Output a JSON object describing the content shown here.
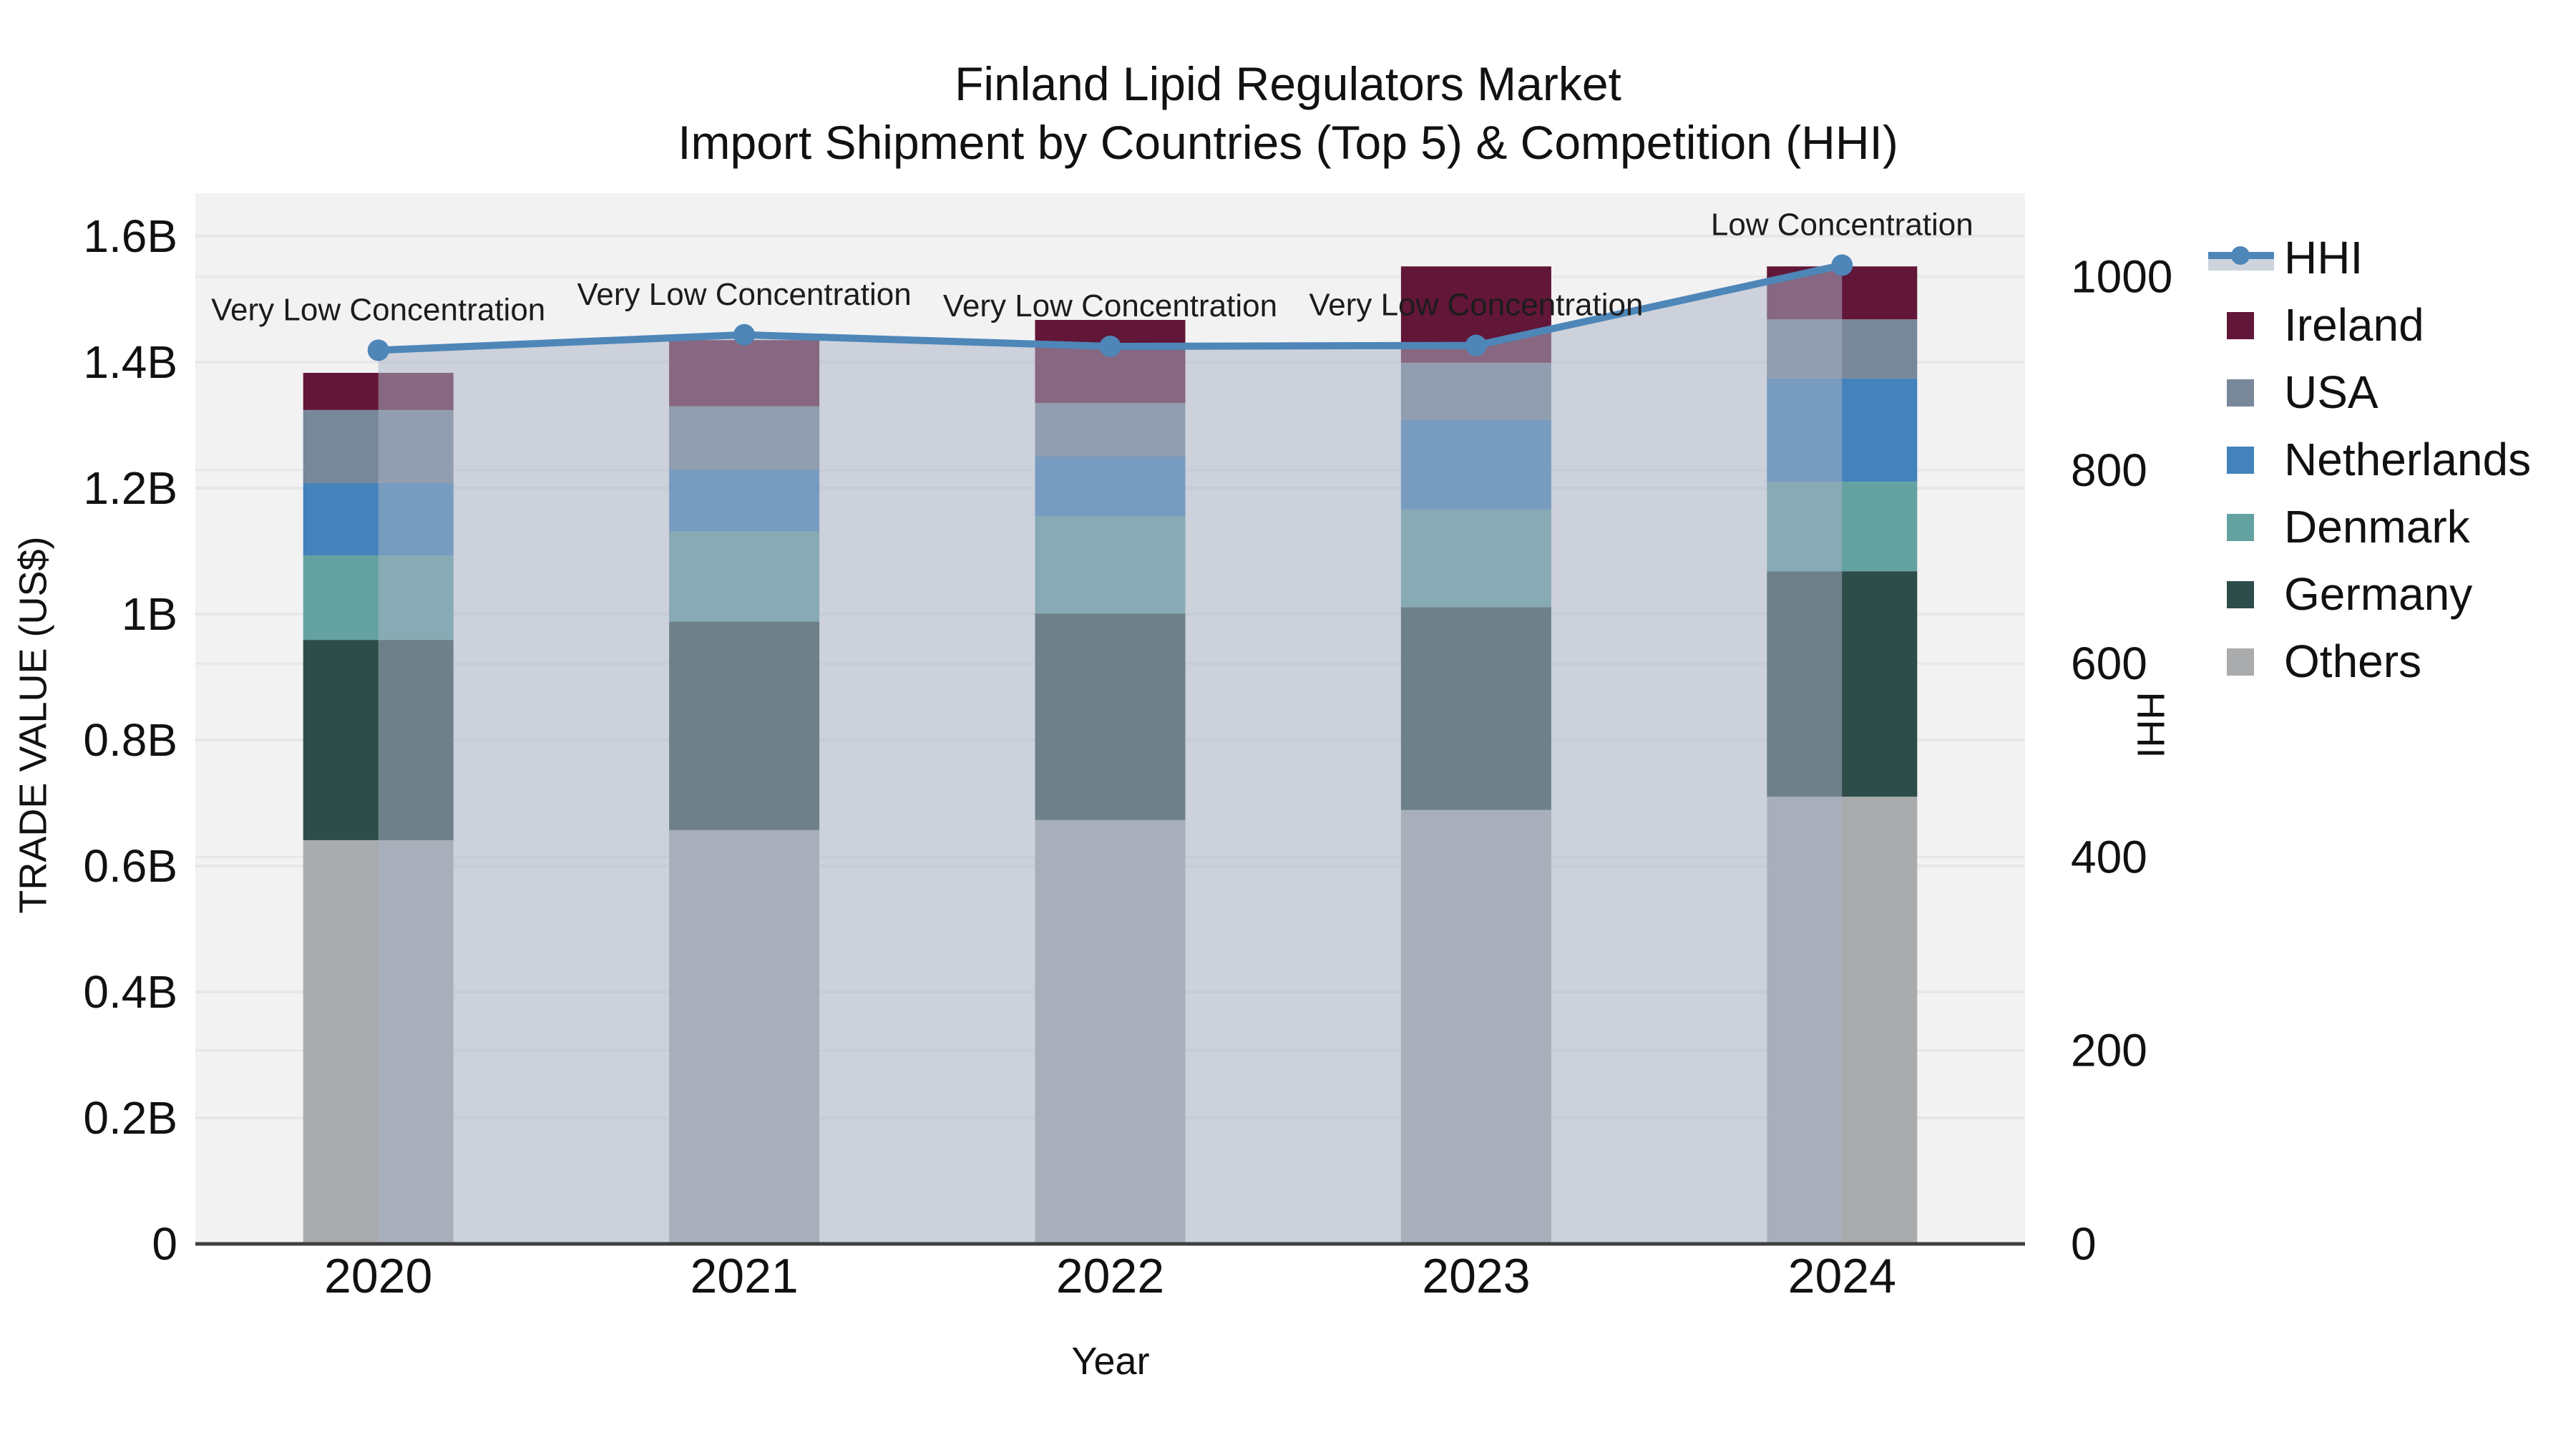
{
  "figure": {
    "title_line1": "Finland Lipid Regulators Market",
    "title_line2": "Import Shipment by Countries (Top 5) & Competition (HHI)"
  },
  "chart_data": {
    "type": "combo: stacked-bar + step-area + line",
    "categories": [
      "2020",
      "2021",
      "2022",
      "2023",
      "2024"
    ],
    "xlabel": "Year",
    "ylabel_left": "TRADE VALUE (US$)",
    "ylabel_right": "HHI",
    "axis_left": {
      "range_B": [
        0,
        1.668
      ],
      "tick_labels": [
        "0",
        "0.2B",
        "0.4B",
        "0.6B",
        "0.8B",
        "1B",
        "1.2B",
        "1.4B",
        "1.6B"
      ],
      "tick_values_B": [
        0,
        0.2,
        0.4,
        0.6,
        0.8,
        1.0,
        1.2,
        1.4,
        1.6
      ],
      "grid": true
    },
    "axis_right": {
      "range": [
        0,
        1086
      ],
      "tick_labels": [
        "0",
        "200",
        "400",
        "600",
        "800",
        "1000"
      ],
      "tick_values": [
        0,
        200,
        400,
        600,
        800,
        1000
      ],
      "grid": true
    },
    "series": [
      {
        "name": "Others",
        "color": "#aaabad",
        "values_B": [
          0.641,
          0.657,
          0.673,
          0.689,
          0.71
        ]
      },
      {
        "name": "Germany",
        "color": "#2e4c4a",
        "values_B": [
          0.318,
          0.331,
          0.328,
          0.322,
          0.358
        ]
      },
      {
        "name": "Denmark",
        "color": "#64a2a2",
        "values_B": [
          0.134,
          0.143,
          0.154,
          0.155,
          0.142
        ]
      },
      {
        "name": "Netherlands",
        "color": "#4382bb",
        "values_B": [
          0.115,
          0.098,
          0.095,
          0.142,
          0.164
        ]
      },
      {
        "name": "USA",
        "color": "#78889a",
        "values_B": [
          0.116,
          0.101,
          0.085,
          0.091,
          0.094
        ]
      },
      {
        "name": "Ireland",
        "color": "#621638",
        "values_B": [
          0.059,
          0.105,
          0.132,
          0.153,
          0.084
        ]
      }
    ],
    "hhi": {
      "name": "HHI",
      "values": [
        924,
        940,
        928,
        929,
        1012
      ],
      "line_color": "#4e86b8",
      "area_fill": "rgba(168,179,197,0.52)"
    },
    "annotations": [
      {
        "category": "2020",
        "text": "Very Low Concentration"
      },
      {
        "category": "2021",
        "text": "Very Low Concentration"
      },
      {
        "category": "2022",
        "text": "Very Low Concentration"
      },
      {
        "category": "2023",
        "text": "Very Low Concentration"
      },
      {
        "category": "2024",
        "text": "Low Concentration"
      }
    ],
    "legend_order": [
      "HHI",
      "Ireland",
      "USA",
      "Netherlands",
      "Denmark",
      "Germany",
      "Others"
    ],
    "plot_bg": "#f2f2f3",
    "grid_color": "#e6e7e9",
    "axis_line_color": "#3f3f3f",
    "text_color": "#111111"
  }
}
